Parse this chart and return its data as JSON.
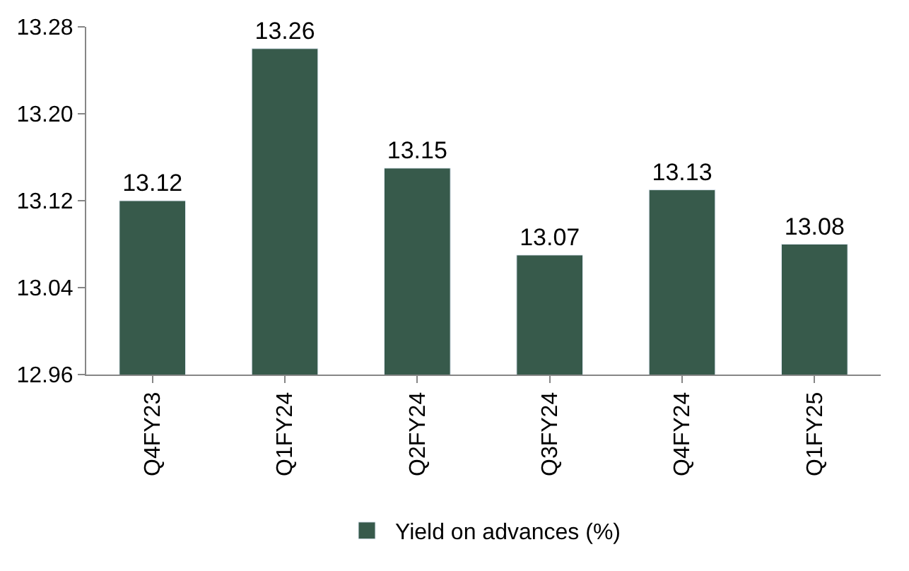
{
  "chart_data": {
    "type": "bar",
    "categories": [
      "Q4FY23",
      "Q1FY24",
      "Q2FY24",
      "Q3FY24",
      "Q4FY24",
      "Q1FY25"
    ],
    "series": [
      {
        "name": "Yield on advances (%)",
        "color": "#375a4b",
        "values": [
          13.12,
          13.26,
          13.15,
          13.07,
          13.13,
          13.08
        ]
      }
    ],
    "ylim": [
      12.96,
      13.28
    ],
    "yticks": [
      12.96,
      13.04,
      13.12,
      {
        "value": 13.2,
        "label": "13.20"
      },
      13.28
    ],
    "data_labels": true,
    "legend": "bottom"
  }
}
